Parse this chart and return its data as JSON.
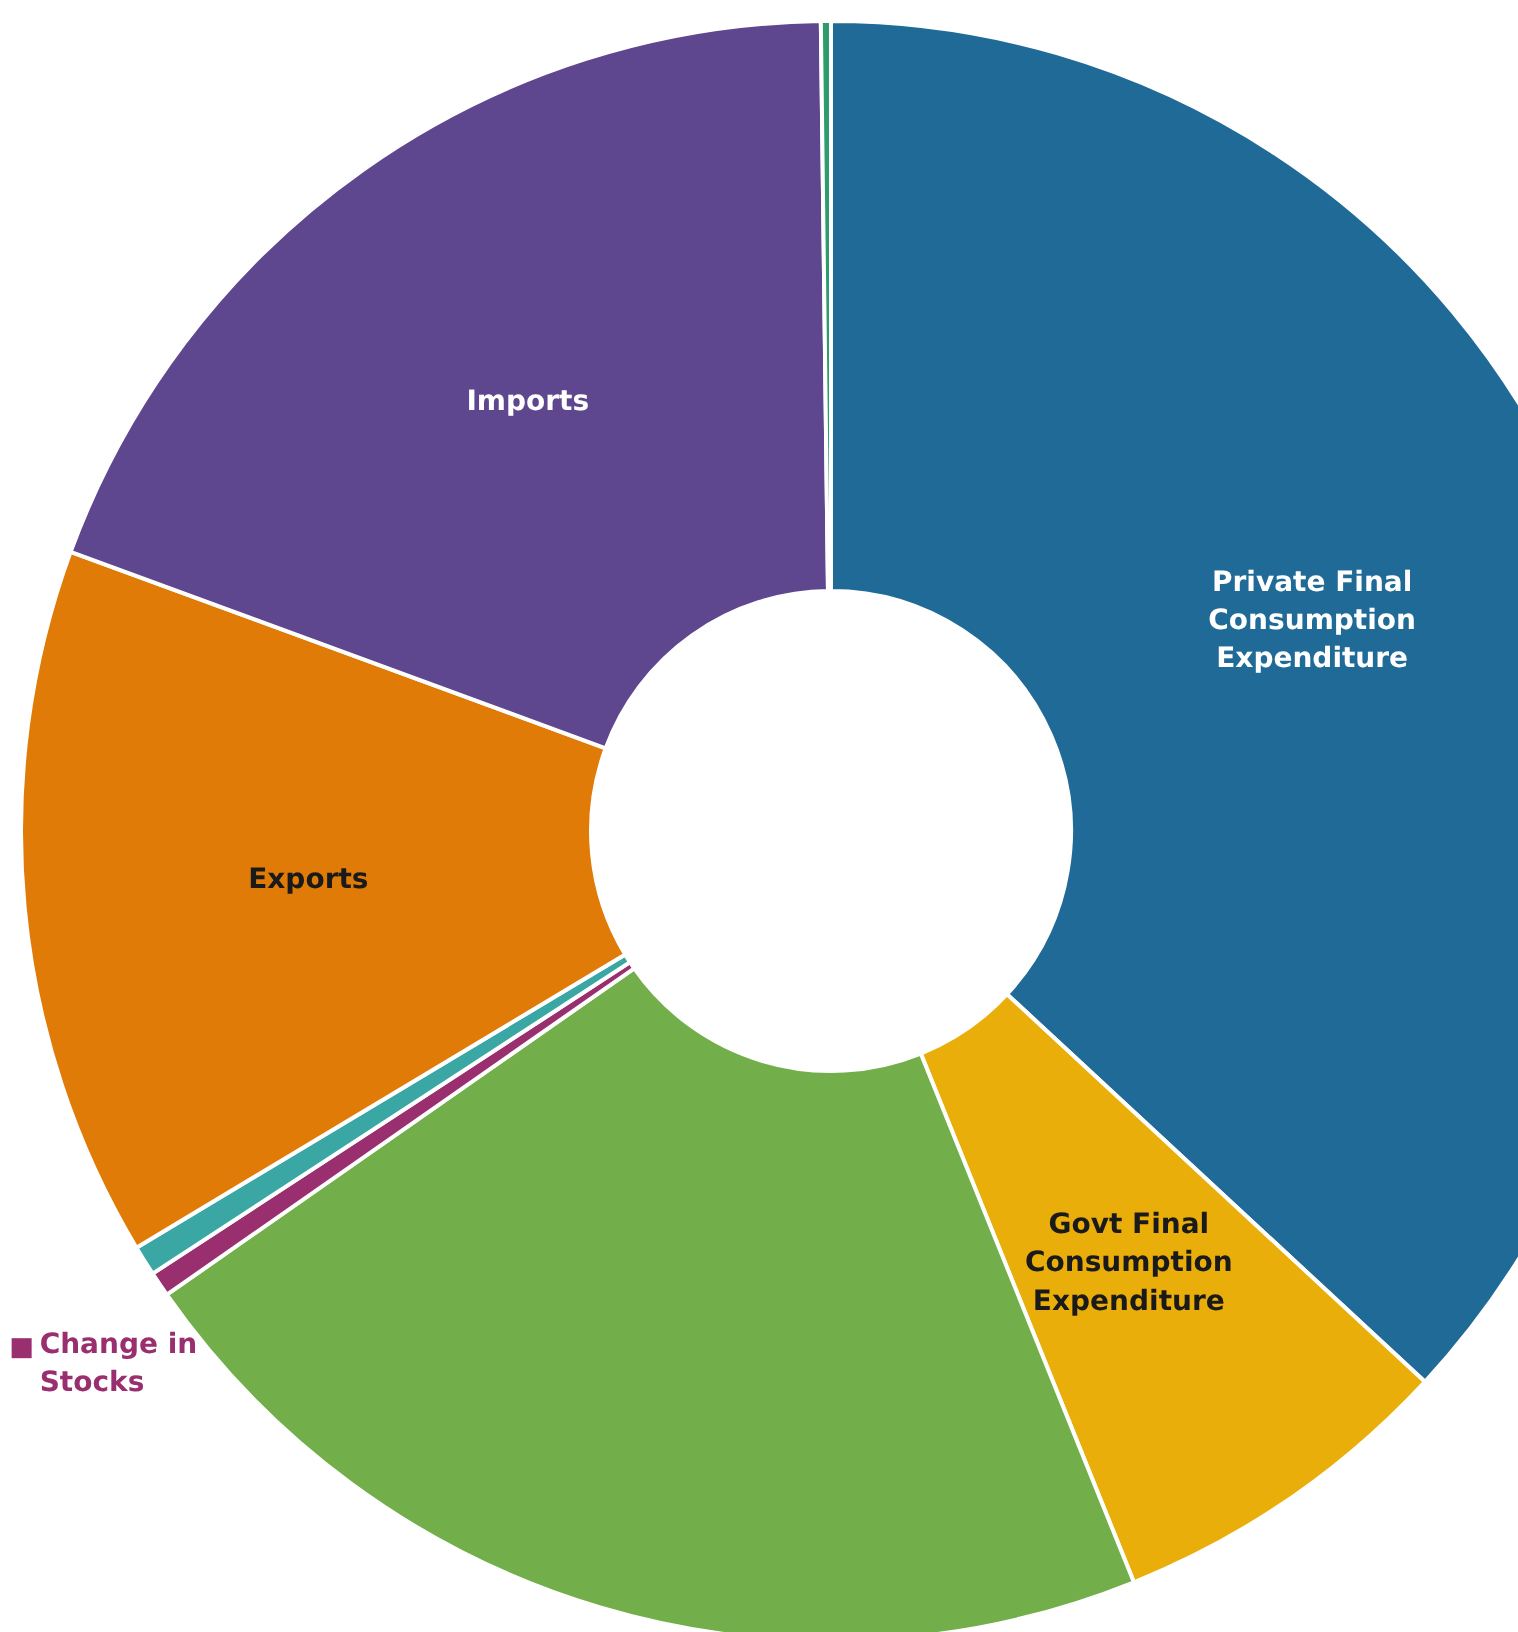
{
  "chart_data": {
    "type": "donut",
    "categories": [
      "Private Final Consumption Expenditure",
      "Govt Final Consumption Expenditure",
      null,
      "Change in Stocks",
      null,
      "Exports",
      "Imports",
      null
    ],
    "values": [
      36.9,
      7.0,
      21.4,
      0.5,
      0.6,
      14.2,
      19.2,
      0.2
    ],
    "colors": [
      "#1f6a96",
      "#eaae0b",
      "#72ae4a",
      "#9a2f6f",
      "#3aa7a5",
      "#e07b07",
      "#5e478f",
      "#2f9c6e"
    ]
  }
}
